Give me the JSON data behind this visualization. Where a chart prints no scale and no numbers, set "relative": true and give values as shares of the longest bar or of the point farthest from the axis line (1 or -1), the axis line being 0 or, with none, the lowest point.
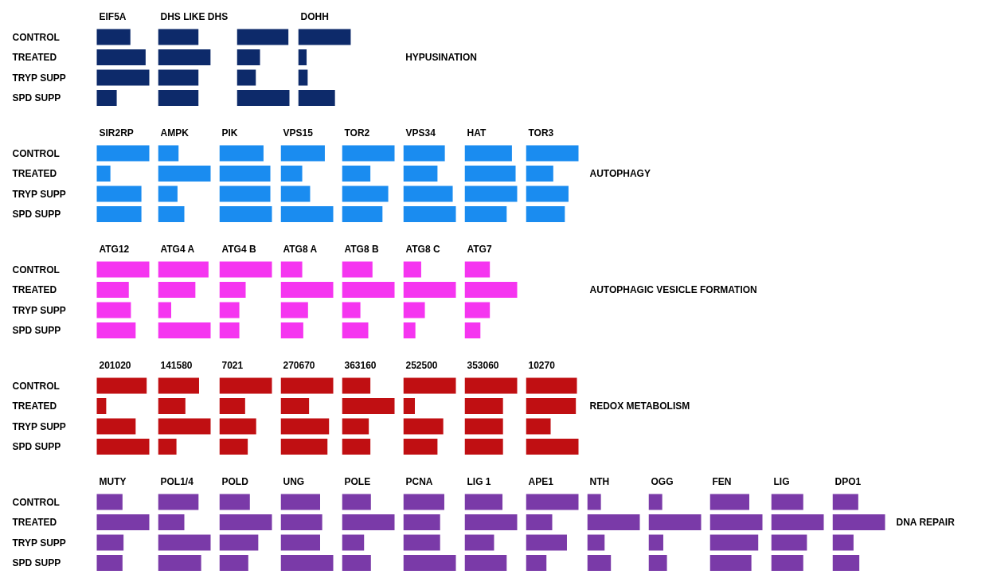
{
  "chart_data": [
    {
      "type": "bar",
      "orientation": "horizontal",
      "relative": true,
      "tick_labels": "y",
      "title": "EIF5A",
      "color": "#0d2a6a",
      "categories": [
        "CONTROL",
        "TREATED",
        "TRYP SUPP",
        "SPD SUPP"
      ],
      "values": [
        0.64,
        0.93,
        1,
        0.38
      ]
    },
    {
      "type": "bar",
      "orientation": "horizontal",
      "relative": true,
      "tick_labels": false,
      "title": "DHS LIKE DHS",
      "color": "#0d2a6a",
      "categories": [
        "CONTROL",
        "TREATED",
        "TRYP SUPP",
        "SPD SUPP"
      ],
      "values": [
        0.77,
        1,
        0.77,
        0.77
      ]
    },
    {
      "type": "bar",
      "orientation": "horizontal",
      "relative": true,
      "tick_labels": false,
      "color": "#0d2a6a",
      "categories": [
        "CONTROL",
        "TREATED",
        "TRYP SUPP",
        "SPD SUPP"
      ],
      "values": [
        0.98,
        0.44,
        0.36,
        1
      ]
    },
    {
      "type": "bar",
      "orientation": "horizontal",
      "relative": true,
      "tick_labels": false,
      "title": "DOHH",
      "color": "#0d2a6a",
      "categories": [
        "CONTROL",
        "TREATED",
        "TRYP SUPP",
        "SPD SUPP"
      ],
      "values": [
        1,
        0.16,
        0.18,
        0.7
      ],
      "annotations": [
        "HYPUSINATION"
      ]
    },
    {
      "type": "bar",
      "orientation": "horizontal",
      "relative": true,
      "tick_labels": "y",
      "title": "SIR2RP",
      "color": "#1a8cf0",
      "categories": [
        "CONTROL",
        "TREATED",
        "TRYP SUPP",
        "SPD SUPP"
      ],
      "values": [
        1,
        0.26,
        0.85,
        0.85
      ]
    },
    {
      "type": "bar",
      "orientation": "horizontal",
      "relative": true,
      "tick_labels": false,
      "title": "AMPK",
      "color": "#1a8cf0",
      "categories": [
        "CONTROL",
        "TREATED",
        "TRYP SUPP",
        "SPD SUPP"
      ],
      "values": [
        0.39,
        1,
        0.37,
        0.5
      ]
    },
    {
      "type": "bar",
      "orientation": "horizontal",
      "relative": true,
      "tick_labels": false,
      "title": "PIK",
      "color": "#1a8cf0",
      "categories": [
        "CONTROL",
        "TREATED",
        "TRYP SUPP",
        "SPD SUPP"
      ],
      "values": [
        0.84,
        0.97,
        0.97,
        1
      ]
    },
    {
      "type": "bar",
      "orientation": "horizontal",
      "relative": true,
      "tick_labels": false,
      "title": "VPS15",
      "color": "#1a8cf0",
      "categories": [
        "CONTROL",
        "TREATED",
        "TRYP SUPP",
        "SPD SUPP"
      ],
      "values": [
        0.84,
        0.41,
        0.56,
        1
      ]
    },
    {
      "type": "bar",
      "orientation": "horizontal",
      "relative": true,
      "tick_labels": false,
      "title": "TOR2",
      "color": "#1a8cf0",
      "categories": [
        "CONTROL",
        "TREATED",
        "TRYP SUPP",
        "SPD SUPP"
      ],
      "values": [
        1,
        0.54,
        0.88,
        0.77
      ]
    },
    {
      "type": "bar",
      "orientation": "horizontal",
      "relative": true,
      "tick_labels": false,
      "title": "VPS34",
      "color": "#1a8cf0",
      "categories": [
        "CONTROL",
        "TREATED",
        "TRYP SUPP",
        "SPD SUPP"
      ],
      "values": [
        0.79,
        0.65,
        0.94,
        1
      ]
    },
    {
      "type": "bar",
      "orientation": "horizontal",
      "relative": true,
      "tick_labels": false,
      "title": "HAT",
      "color": "#1a8cf0",
      "categories": [
        "CONTROL",
        "TREATED",
        "TRYP SUPP",
        "SPD SUPP"
      ],
      "values": [
        0.9,
        0.97,
        1,
        0.8
      ]
    },
    {
      "type": "bar",
      "orientation": "horizontal",
      "relative": true,
      "tick_labels": false,
      "title": "TOR3",
      "color": "#1a8cf0",
      "categories": [
        "CONTROL",
        "TREATED",
        "TRYP SUPP",
        "SPD SUPP"
      ],
      "values": [
        1,
        0.52,
        0.81,
        0.74
      ],
      "annotations": [
        "AUTOPHAGY"
      ]
    },
    {
      "type": "bar",
      "orientation": "horizontal",
      "relative": true,
      "tick_labels": "y",
      "title": "ATG12",
      "color": "#f535f0",
      "categories": [
        "CONTROL",
        "TREATED",
        "TRYP SUPP",
        "SPD SUPP"
      ],
      "values": [
        1,
        0.61,
        0.65,
        0.74
      ]
    },
    {
      "type": "bar",
      "orientation": "horizontal",
      "relative": true,
      "tick_labels": false,
      "title": "ATG4 A",
      "color": "#f535f0",
      "categories": [
        "CONTROL",
        "TREATED",
        "TRYP SUPP",
        "SPD SUPP"
      ],
      "values": [
        0.96,
        0.71,
        0.25,
        1
      ]
    },
    {
      "type": "bar",
      "orientation": "horizontal",
      "relative": true,
      "tick_labels": false,
      "title": "ATG4 B",
      "color": "#f535f0",
      "categories": [
        "CONTROL",
        "TREATED",
        "TRYP SUPP",
        "SPD SUPP"
      ],
      "values": [
        1,
        0.5,
        0.38,
        0.38
      ]
    },
    {
      "type": "bar",
      "orientation": "horizontal",
      "relative": true,
      "tick_labels": false,
      "title": "ATG8 A",
      "color": "#f535f0",
      "categories": [
        "CONTROL",
        "TREATED",
        "TRYP SUPP",
        "SPD SUPP"
      ],
      "values": [
        0.41,
        1,
        0.52,
        0.43
      ]
    },
    {
      "type": "bar",
      "orientation": "horizontal",
      "relative": true,
      "tick_labels": false,
      "title": "ATG8 B",
      "color": "#f535f0",
      "categories": [
        "CONTROL",
        "TREATED",
        "TRYP SUPP",
        "SPD SUPP"
      ],
      "values": [
        0.58,
        1,
        0.35,
        0.5
      ]
    },
    {
      "type": "bar",
      "orientation": "horizontal",
      "relative": true,
      "tick_labels": false,
      "title": "ATG8 C",
      "color": "#f535f0",
      "categories": [
        "CONTROL",
        "TREATED",
        "TRYP SUPP",
        "SPD SUPP"
      ],
      "values": [
        0.34,
        1,
        0.41,
        0.23
      ]
    },
    {
      "type": "bar",
      "orientation": "horizontal",
      "relative": true,
      "tick_labels": false,
      "title": "ATG7",
      "color": "#f535f0",
      "categories": [
        "CONTROL",
        "TREATED",
        "TRYP SUPP",
        "SPD SUPP"
      ],
      "values": [
        0.48,
        1,
        0.48,
        0.3
      ],
      "annotations": [
        "AUTOPHAGIC VESICLE FORMATION"
      ]
    },
    {
      "type": "bar",
      "orientation": "horizontal",
      "relative": true,
      "tick_labels": "y",
      "title": "201020",
      "color": "#c00f12",
      "categories": [
        "CONTROL",
        "TREATED",
        "TRYP SUPP",
        "SPD SUPP"
      ],
      "values": [
        0.95,
        0.18,
        0.74,
        1
      ]
    },
    {
      "type": "bar",
      "orientation": "horizontal",
      "relative": true,
      "tick_labels": false,
      "title": "141580",
      "color": "#c00f12",
      "categories": [
        "CONTROL",
        "TREATED",
        "TRYP SUPP",
        "SPD SUPP"
      ],
      "values": [
        0.78,
        0.52,
        1,
        0.35
      ]
    },
    {
      "type": "bar",
      "orientation": "horizontal",
      "relative": true,
      "tick_labels": false,
      "title": "7021",
      "color": "#c00f12",
      "categories": [
        "CONTROL",
        "TREATED",
        "TRYP SUPP",
        "SPD SUPP"
      ],
      "values": [
        1,
        0.49,
        0.7,
        0.54
      ]
    },
    {
      "type": "bar",
      "orientation": "horizontal",
      "relative": true,
      "tick_labels": false,
      "title": "270670",
      "color": "#c00f12",
      "categories": [
        "CONTROL",
        "TREATED",
        "TRYP SUPP",
        "SPD SUPP"
      ],
      "values": [
        1,
        0.54,
        0.92,
        0.89
      ]
    },
    {
      "type": "bar",
      "orientation": "horizontal",
      "relative": true,
      "tick_labels": false,
      "title": "363160",
      "color": "#c00f12",
      "categories": [
        "CONTROL",
        "TREATED",
        "TRYP SUPP",
        "SPD SUPP"
      ],
      "values": [
        0.54,
        1,
        0.51,
        0.54
      ]
    },
    {
      "type": "bar",
      "orientation": "horizontal",
      "relative": true,
      "tick_labels": false,
      "title": "252500",
      "color": "#c00f12",
      "categories": [
        "CONTROL",
        "TREATED",
        "TRYP SUPP",
        "SPD SUPP"
      ],
      "values": [
        1,
        0.22,
        0.76,
        0.65
      ]
    },
    {
      "type": "bar",
      "orientation": "horizontal",
      "relative": true,
      "tick_labels": false,
      "title": "353060",
      "color": "#c00f12",
      "categories": [
        "CONTROL",
        "TREATED",
        "TRYP SUPP",
        "SPD SUPP"
      ],
      "values": [
        1,
        0.73,
        0.73,
        0.73
      ]
    },
    {
      "type": "bar",
      "orientation": "horizontal",
      "relative": true,
      "tick_labels": false,
      "title": "10270",
      "color": "#c00f12",
      "categories": [
        "CONTROL",
        "TREATED",
        "TRYP SUPP",
        "SPD SUPP"
      ],
      "values": [
        0.97,
        0.95,
        0.47,
        1
      ],
      "annotations": [
        "REDOX METABOLISM"
      ]
    },
    {
      "type": "bar",
      "orientation": "horizontal",
      "relative": true,
      "tick_labels": "y",
      "title": "MUTY",
      "color": "#7a3aa8",
      "categories": [
        "CONTROL",
        "TREATED",
        "TRYP SUPP",
        "SPD SUPP"
      ],
      "values": [
        0.49,
        1,
        0.51,
        0.49
      ]
    },
    {
      "type": "bar",
      "orientation": "horizontal",
      "relative": true,
      "tick_labels": false,
      "title": "POL1/4",
      "color": "#7a3aa8",
      "categories": [
        "CONTROL",
        "TREATED",
        "TRYP SUPP",
        "SPD SUPP"
      ],
      "values": [
        0.77,
        0.5,
        1,
        0.82
      ]
    },
    {
      "type": "bar",
      "orientation": "horizontal",
      "relative": true,
      "tick_labels": false,
      "title": "POLD",
      "color": "#7a3aa8",
      "categories": [
        "CONTROL",
        "TREATED",
        "TRYP SUPP",
        "SPD SUPP"
      ],
      "values": [
        0.58,
        1,
        0.74,
        0.55
      ]
    },
    {
      "type": "bar",
      "orientation": "horizontal",
      "relative": true,
      "tick_labels": false,
      "title": "UNG",
      "color": "#7a3aa8",
      "categories": [
        "CONTROL",
        "TREATED",
        "TRYP SUPP",
        "SPD SUPP"
      ],
      "values": [
        0.75,
        0.79,
        0.75,
        1
      ]
    },
    {
      "type": "bar",
      "orientation": "horizontal",
      "relative": true,
      "tick_labels": false,
      "title": "POLE",
      "color": "#7a3aa8",
      "categories": [
        "CONTROL",
        "TREATED",
        "TRYP SUPP",
        "SPD SUPP"
      ],
      "values": [
        0.55,
        1,
        0.42,
        0.55
      ]
    },
    {
      "type": "bar",
      "orientation": "horizontal",
      "relative": true,
      "tick_labels": false,
      "title": "PCNA",
      "color": "#7a3aa8",
      "categories": [
        "CONTROL",
        "TREATED",
        "TRYP SUPP",
        "SPD SUPP"
      ],
      "values": [
        0.78,
        0.7,
        0.7,
        1
      ]
    },
    {
      "type": "bar",
      "orientation": "horizontal",
      "relative": true,
      "tick_labels": false,
      "title": "LIG 1",
      "color": "#7a3aa8",
      "categories": [
        "CONTROL",
        "TREATED",
        "TRYP SUPP",
        "SPD SUPP"
      ],
      "values": [
        0.72,
        1,
        0.56,
        0.8
      ]
    },
    {
      "type": "bar",
      "orientation": "horizontal",
      "relative": true,
      "tick_labels": false,
      "title": "APE1",
      "color": "#7a3aa8",
      "categories": [
        "CONTROL",
        "TREATED",
        "TRYP SUPP",
        "SPD SUPP"
      ],
      "values": [
        1,
        0.5,
        0.78,
        0.39
      ]
    },
    {
      "type": "bar",
      "orientation": "horizontal",
      "relative": true,
      "tick_labels": false,
      "title": "NTH",
      "color": "#7a3aa8",
      "categories": [
        "CONTROL",
        "TREATED",
        "TRYP SUPP",
        "SPD SUPP"
      ],
      "values": [
        0.26,
        1,
        0.33,
        0.45
      ]
    },
    {
      "type": "bar",
      "orientation": "horizontal",
      "relative": true,
      "tick_labels": false,
      "title": "OGG",
      "color": "#7a3aa8",
      "categories": [
        "CONTROL",
        "TREATED",
        "TRYP SUPP",
        "SPD SUPP"
      ],
      "values": [
        0.26,
        1,
        0.28,
        0.35
      ]
    },
    {
      "type": "bar",
      "orientation": "horizontal",
      "relative": true,
      "tick_labels": false,
      "title": "FEN",
      "color": "#7a3aa8",
      "categories": [
        "CONTROL",
        "TREATED",
        "TRYP SUPP",
        "SPD SUPP"
      ],
      "values": [
        0.75,
        1,
        0.92,
        0.79
      ]
    },
    {
      "type": "bar",
      "orientation": "horizontal",
      "relative": true,
      "tick_labels": false,
      "title": "LIG",
      "color": "#7a3aa8",
      "categories": [
        "CONTROL",
        "TREATED",
        "TRYP SUPP",
        "SPD SUPP"
      ],
      "values": [
        0.61,
        1,
        0.68,
        0.61
      ]
    },
    {
      "type": "bar",
      "orientation": "horizontal",
      "relative": true,
      "tick_labels": false,
      "title": "DPO1",
      "color": "#7a3aa8",
      "categories": [
        "CONTROL",
        "TREATED",
        "TRYP SUPP",
        "SPD SUPP"
      ],
      "values": [
        0.49,
        1,
        0.4,
        0.51
      ],
      "annotations": [
        "DNA REPAIR"
      ]
    }
  ]
}
